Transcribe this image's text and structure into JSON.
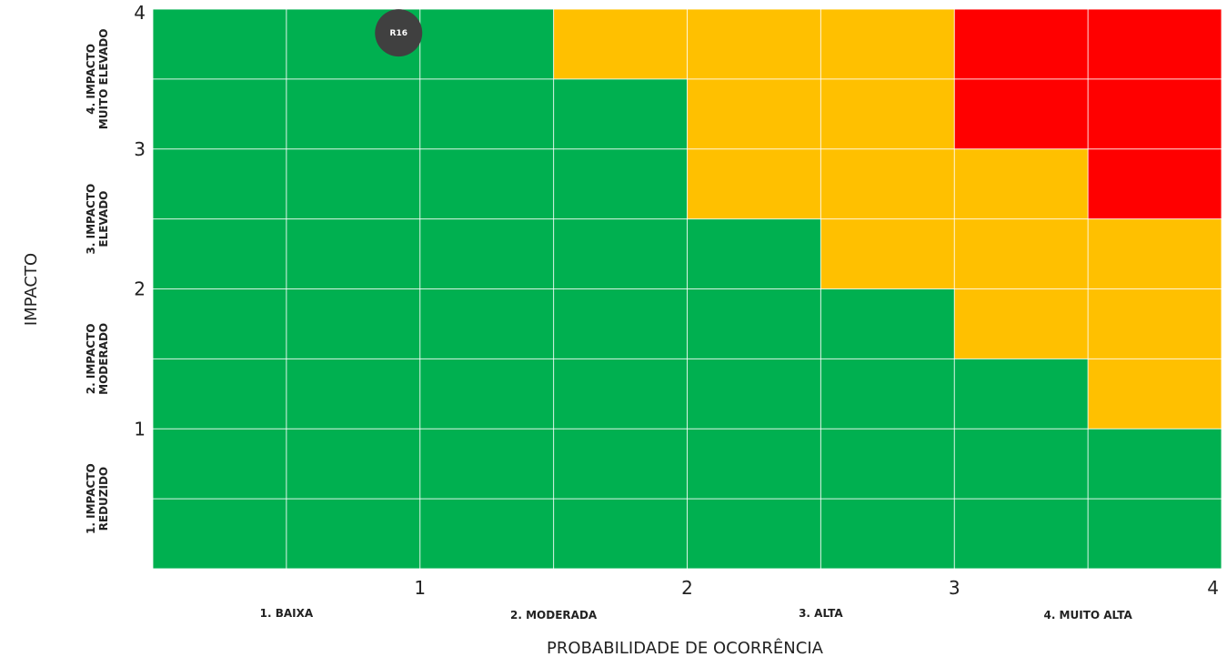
{
  "chart_data": {
    "type": "heatmap",
    "xlabel": "PROBABILIDADE DE OCORRÊNCIA",
    "ylabel": "IMPACTO",
    "xlim": [
      0,
      4
    ],
    "ylim": [
      0,
      4
    ],
    "x_ticks": [
      "1",
      "2",
      "3",
      "4"
    ],
    "y_ticks": [
      "1",
      "2",
      "3",
      "4"
    ],
    "x_categories": [
      "1. BAIXA",
      "2. MODERADA",
      "3. ALTA",
      "4. MUITO ALTA"
    ],
    "y_categories": [
      [
        "1. IMPACTO",
        "REDUZIDO"
      ],
      [
        "2. IMPACTO",
        "MODERADO"
      ],
      [
        "3. IMPACTO",
        "ELEVADO"
      ],
      [
        "4. IMPACTO",
        "MUITO ELEVADO"
      ]
    ],
    "grid": true,
    "grid_step": 0.5,
    "colors": {
      "low": "#00b050",
      "medium": "#ffc000",
      "high": "#ff0000"
    },
    "cells_legend": "rows listed from top (impact 3.5-4) to bottom (impact 0-0.5); columns from probability 0 to 4 in steps of 0.5; G=low, Y=medium, R=high",
    "cells": [
      [
        "G",
        "G",
        "G",
        "Y",
        "Y",
        "Y",
        "R",
        "R"
      ],
      [
        "G",
        "G",
        "G",
        "G",
        "Y",
        "Y",
        "R",
        "R"
      ],
      [
        "G",
        "G",
        "G",
        "G",
        "Y",
        "Y",
        "Y",
        "R"
      ],
      [
        "G",
        "G",
        "G",
        "G",
        "G",
        "Y",
        "Y",
        "Y"
      ],
      [
        "G",
        "G",
        "G",
        "G",
        "G",
        "G",
        "Y",
        "Y"
      ],
      [
        "G",
        "G",
        "G",
        "G",
        "G",
        "G",
        "G",
        "Y"
      ],
      [
        "G",
        "G",
        "G",
        "G",
        "G",
        "G",
        "G",
        "G"
      ],
      [
        "G",
        "G",
        "G",
        "G",
        "G",
        "G",
        "G",
        "G"
      ]
    ],
    "points": [
      {
        "label": "R16",
        "x": 0.92,
        "y": 3.83,
        "color": "#404040"
      }
    ]
  }
}
